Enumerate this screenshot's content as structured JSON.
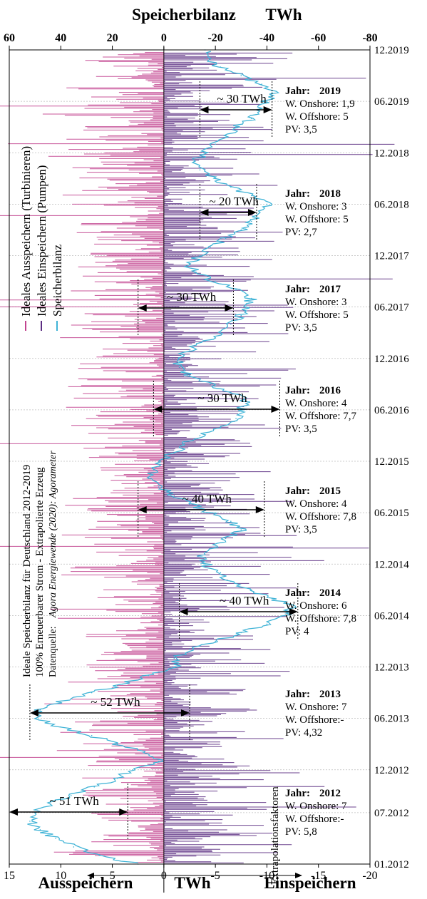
{
  "chart_data": {
    "type": "line",
    "title": "Speicherbilanz",
    "title_unit": "TWh",
    "top_axis": {
      "ticks": [
        60,
        40,
        20,
        0,
        -20,
        -40,
        -60,
        -80
      ],
      "range": [
        60,
        -80
      ]
    },
    "bottom_axis": {
      "ticks": [
        15,
        10,
        5,
        0,
        -5,
        -10,
        -15,
        -20
      ],
      "range": [
        15,
        -20
      ],
      "label_left": "Ausspeichern",
      "label_center": "TWh",
      "label_right": "Einspeichern"
    },
    "date_ticks": [
      "12.2019",
      "06.2019",
      "12.2018",
      "06.2018",
      "12.2017",
      "06.2017",
      "12.2016",
      "06.2016",
      "12.2015",
      "06.2015",
      "12.2014",
      "06.2014",
      "12.2013",
      "06.2013",
      "12.2012",
      "07.2012",
      "01.2012"
    ],
    "legend": {
      "placement": "left-vertical",
      "items": [
        {
          "label": "Ideales Ausspeichern (Turbinieren)",
          "color": "#c2448f"
        },
        {
          "label": "Ideales Einspeichern (Pumpen)",
          "color": "#5b2d82"
        },
        {
          "label": "Speicherbilanz",
          "color": "#3fb3d6"
        }
      ]
    },
    "side_text": [
      "Ideale Speicherbilanz für  Deutschland 2012-2019",
      "100% Erneuerbarer Strom - Extrapolierte Erzeug",
      "Datenquelle: ",
      "Agora Energiewende (2020): Agorameter"
    ],
    "extrapolation_label": "Extrapolationsfaktoren",
    "series": [
      {
        "name": "Speicherbilanz",
        "color": "#3fb3d6",
        "points": [
          [
            "01.2012",
            10
          ],
          [
            "02.2012",
            25
          ],
          [
            "03.2012",
            35
          ],
          [
            "04.2012",
            42
          ],
          [
            "05.2012",
            48
          ],
          [
            "06.2012",
            52
          ],
          [
            "07.2012",
            50
          ],
          [
            "08.2012",
            44
          ],
          [
            "09.2012",
            36
          ],
          [
            "10.2012",
            27
          ],
          [
            "11.2012",
            18
          ],
          [
            "12.2012",
            12
          ],
          [
            "01.2013",
            2
          ],
          [
            "02.2013",
            8
          ],
          [
            "03.2013",
            18
          ],
          [
            "04.2013",
            28
          ],
          [
            "05.2013",
            40
          ],
          [
            "06.2013",
            50
          ],
          [
            "07.2013",
            48
          ],
          [
            "08.2013",
            40
          ],
          [
            "09.2013",
            28
          ],
          [
            "10.2013",
            16
          ],
          [
            "11.2013",
            6
          ],
          [
            "12.2013",
            -4
          ],
          [
            "01.2014",
            -4
          ],
          [
            "02.2014",
            -10
          ],
          [
            "03.2014",
            -20
          ],
          [
            "04.2014",
            -30
          ],
          [
            "05.2014",
            -40
          ],
          [
            "06.2014",
            -47
          ],
          [
            "07.2014",
            -50
          ],
          [
            "08.2014",
            -42
          ],
          [
            "09.2014",
            -34
          ],
          [
            "10.2014",
            -26
          ],
          [
            "11.2014",
            -22
          ],
          [
            "12.2014",
            -16
          ],
          [
            "01.2015",
            -14
          ],
          [
            "02.2015",
            -20
          ],
          [
            "03.2015",
            -24
          ],
          [
            "04.2015",
            -30
          ],
          [
            "05.2015",
            -26
          ],
          [
            "06.2015",
            -18
          ],
          [
            "07.2015",
            -10
          ],
          [
            "08.2015",
            -4
          ],
          [
            "09.2015",
            2
          ],
          [
            "10.2015",
            6
          ],
          [
            "11.2015",
            4
          ],
          [
            "12.2015",
            2
          ],
          [
            "01.2016",
            -4
          ],
          [
            "02.2016",
            -8
          ],
          [
            "03.2016",
            -14
          ],
          [
            "04.2016",
            -22
          ],
          [
            "05.2016",
            -28
          ],
          [
            "06.2016",
            -30
          ],
          [
            "07.2016",
            -32
          ],
          [
            "08.2016",
            -26
          ],
          [
            "09.2016",
            -18
          ],
          [
            "10.2016",
            -10
          ],
          [
            "11.2016",
            -6
          ],
          [
            "12.2016",
            -6
          ],
          [
            "01.2017",
            -10
          ],
          [
            "02.2017",
            -16
          ],
          [
            "03.2017",
            -22
          ],
          [
            "04.2017",
            -26
          ],
          [
            "05.2017",
            -30
          ],
          [
            "06.2017",
            -32
          ],
          [
            "07.2017",
            -34
          ],
          [
            "08.2017",
            -28
          ],
          [
            "09.2017",
            -20
          ],
          [
            "10.2017",
            -12
          ],
          [
            "11.2017",
            -10
          ],
          [
            "12.2017",
            -14
          ],
          [
            "01.2018",
            -18
          ],
          [
            "02.2018",
            -24
          ],
          [
            "03.2018",
            -30
          ],
          [
            "04.2018",
            -34
          ],
          [
            "05.2018",
            -36
          ],
          [
            "06.2018",
            -40
          ],
          [
            "07.2018",
            -34
          ],
          [
            "08.2018",
            -26
          ],
          [
            "09.2018",
            -20
          ],
          [
            "10.2018",
            -14
          ],
          [
            "11.2018",
            -12
          ],
          [
            "12.2018",
            -16
          ],
          [
            "01.2019",
            -20
          ],
          [
            "02.2019",
            -24
          ],
          [
            "03.2019",
            -28
          ],
          [
            "04.2019",
            -34
          ],
          [
            "05.2019",
            -38
          ],
          [
            "06.2019",
            -40
          ],
          [
            "07.2019",
            -42
          ],
          [
            "08.2019",
            -38
          ],
          [
            "09.2019",
            -30
          ],
          [
            "10.2019",
            -22
          ],
          [
            "11.2019",
            -16
          ],
          [
            "12.2019",
            -16
          ]
        ]
      },
      {
        "name": "Ideales Ausspeichern (Turbinieren)",
        "color": "#c2448f",
        "typical_range": [
          0,
          12
        ]
      },
      {
        "name": "Ideales Einspeichern (Pumpen)",
        "color": "#5b2d82",
        "typical_range": [
          -14,
          0
        ]
      }
    ],
    "years": [
      {
        "jahr_label": "Jahr:",
        "year": "2019",
        "onshore": "W. Onshore: 1,9",
        "offshore": "W. Offshore: 5",
        "pv": "PV: 3,5",
        "range_label": "~ 30 TWh",
        "range": [
          -14,
          -42
        ]
      },
      {
        "jahr_label": "Jahr:",
        "year": "2018",
        "onshore": "W. Onshore: 3",
        "offshore": "W. Offshore: 5",
        "pv": "PV: 2,7",
        "range_label": "~ 20 TWh",
        "range": [
          -14,
          -36
        ]
      },
      {
        "jahr_label": "Jahr:",
        "year": "2017",
        "onshore": "W. Onshore: 3",
        "offshore": "W. Offshore: 5",
        "pv": "PV: 3,5",
        "range_label": "~ 30 TWh",
        "range": [
          10,
          -27
        ]
      },
      {
        "jahr_label": "Jahr:",
        "year": "2016",
        "onshore": "W. Onshore: 4",
        "offshore": "W. Offshore: 7,7",
        "pv": "PV: 3,5",
        "range_label": "~ 30 TWh",
        "range": [
          4,
          -45
        ]
      },
      {
        "jahr_label": "Jahr:",
        "year": "2015",
        "onshore": "W. Onshore: 4",
        "offshore": "W. Offshore: 7,8",
        "pv": "PV: 3,5",
        "range_label": "~ 40 TWh",
        "range": [
          10,
          -39
        ]
      },
      {
        "jahr_label": "Jahr:",
        "year": "2014",
        "onshore": "W. Onshore: 6",
        "offshore": "W. Offshore: 7,8",
        "pv": "PV: 4",
        "range_label": "~ 40 TWh",
        "range": [
          -6,
          -52
        ]
      },
      {
        "jahr_label": "Jahr:",
        "year": "2013",
        "onshore": "W. Onshore: 7",
        "offshore": "W. Offshore:-",
        "pv": "PV: 4,32",
        "range_label": "~ 52 TWh",
        "range": [
          52,
          -10
        ]
      },
      {
        "jahr_label": "Jahr:",
        "year": "2012",
        "onshore": "W. Onshore: 7",
        "offshore": "W. Offshore:-",
        "pv": "PV: 5,8",
        "range_label": "~ 51 TWh",
        "range": [
          60,
          14
        ]
      }
    ]
  }
}
